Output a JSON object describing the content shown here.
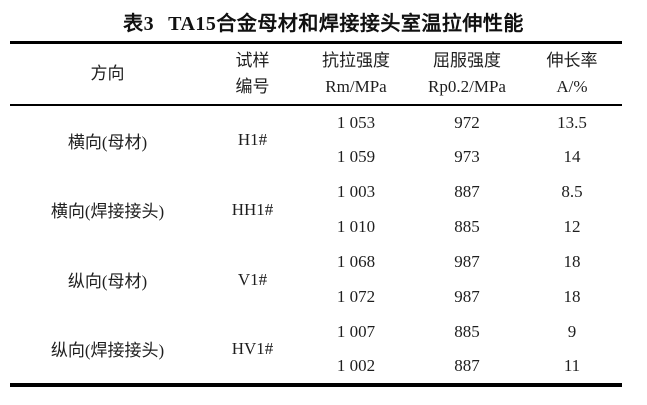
{
  "caption": {
    "label": "表3",
    "text": "TA15合金母材和焊接接头室温拉伸性能"
  },
  "header": {
    "direction": "方向",
    "sample": [
      "试样",
      "编号"
    ],
    "tensile": [
      "抗拉强度",
      "Rm/MPa"
    ],
    "yield": [
      "屈服强度",
      "Rp0.2/MPa"
    ],
    "elongation": [
      "伸长率",
      "A/%"
    ]
  },
  "table": {
    "groups": [
      {
        "direction": "横向(母材)",
        "sample": "H1#",
        "rows": [
          [
            "1 053",
            "972",
            "13.5"
          ],
          [
            "1 059",
            "973",
            "14"
          ]
        ]
      },
      {
        "direction": "横向(焊接接头)",
        "sample": "HH1#",
        "rows": [
          [
            "1 003",
            "887",
            "8.5"
          ],
          [
            "1 010",
            "885",
            "12"
          ]
        ]
      },
      {
        "direction": "纵向(母材)",
        "sample": "V1#",
        "rows": [
          [
            "1 068",
            "987",
            "18"
          ],
          [
            "1 072",
            "987",
            "18"
          ]
        ]
      },
      {
        "direction": "纵向(焊接接头)",
        "sample": "HV1#",
        "rows": [
          [
            "1 007",
            "885",
            "9"
          ],
          [
            "1 002",
            "887",
            "11"
          ]
        ]
      }
    ]
  },
  "colors": {
    "background": "#ffffff",
    "text": "#1e1e1e",
    "rule": "#000000"
  }
}
